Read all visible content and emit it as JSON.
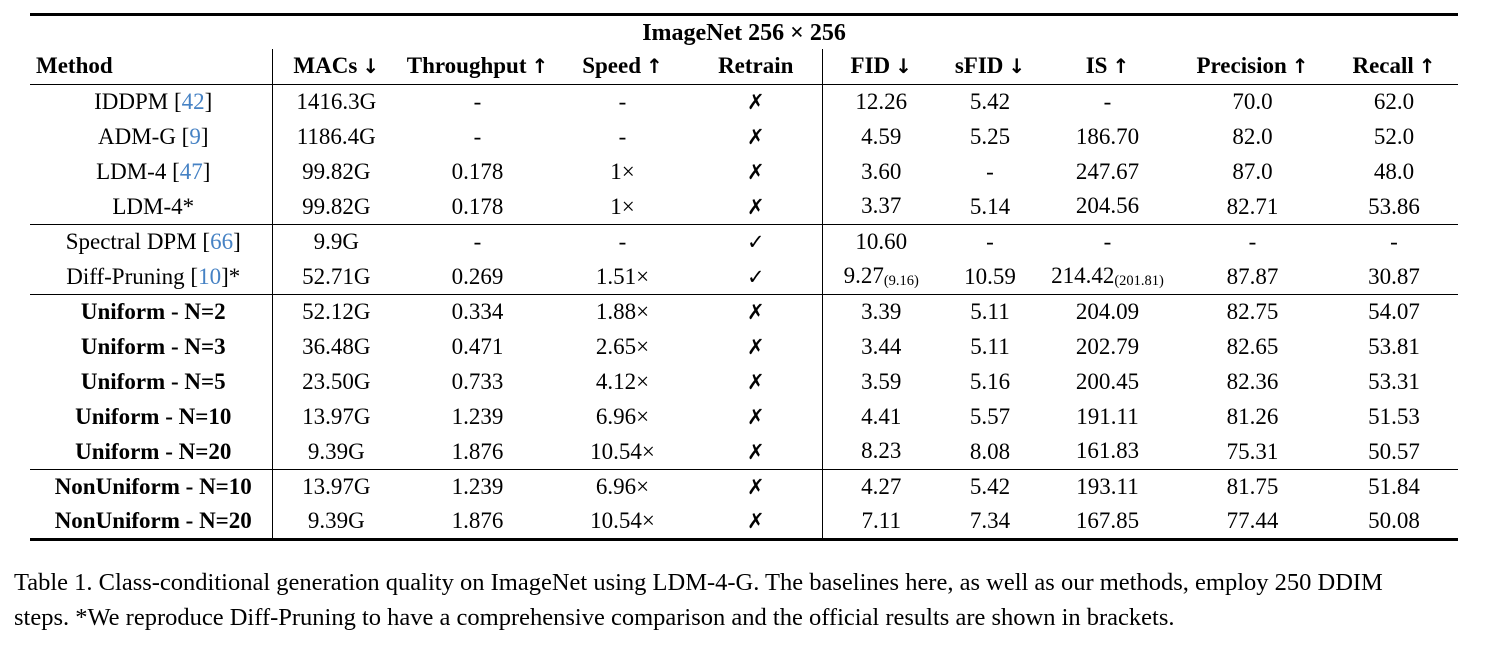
{
  "colors": {
    "citation": "#4682c4",
    "text": "#000000",
    "background": "#ffffff"
  },
  "table": {
    "title": "ImageNet 256 × 256",
    "columns": [
      {
        "label": "Method",
        "arrow": ""
      },
      {
        "label": "MACs",
        "arrow": "↓"
      },
      {
        "label": "Throughput",
        "arrow": "↑"
      },
      {
        "label": "Speed",
        "arrow": "↑"
      },
      {
        "label": "Retrain",
        "arrow": ""
      },
      {
        "label": "FID",
        "arrow": "↓"
      },
      {
        "label": "sFID",
        "arrow": "↓"
      },
      {
        "label": "IS",
        "arrow": "↑"
      },
      {
        "label": "Precision",
        "arrow": "↑"
      },
      {
        "label": "Recall",
        "arrow": "↑"
      }
    ],
    "rows": [
      {
        "method": {
          "pre": "IDDPM [",
          "cite": "42",
          "post": "]"
        },
        "macs": "1416.3G",
        "throughput": "-",
        "speed": "-",
        "retrain": "✗",
        "fid": "12.26",
        "fid_sub": "",
        "sfid": "5.42",
        "is": "-",
        "is_sub": "",
        "precision": "70.0",
        "recall": "62.0"
      },
      {
        "method": {
          "pre": "ADM-G [",
          "cite": "9",
          "post": "]"
        },
        "macs": "1186.4G",
        "throughput": "-",
        "speed": "-",
        "retrain": "✗",
        "fid": "4.59",
        "fid_sub": "",
        "sfid": "5.25",
        "is": "186.70",
        "is_sub": "",
        "precision": "82.0",
        "recall": "52.0"
      },
      {
        "method": {
          "pre": "LDM-4 [",
          "cite": "47",
          "post": "]"
        },
        "macs": "99.82G",
        "throughput": "0.178",
        "speed": "1×",
        "retrain": "✗",
        "fid": "3.60",
        "fid_sub": "",
        "sfid": "-",
        "is": "247.67",
        "is_sub": "",
        "precision": "87.0",
        "recall": "48.0"
      },
      {
        "method": {
          "pre": "LDM-4*",
          "cite": "",
          "post": ""
        },
        "macs": "99.82G",
        "throughput": "0.178",
        "speed": "1×",
        "retrain": "✗",
        "fid": "3.37",
        "fid_sub": "",
        "sfid": "5.14",
        "is": "204.56",
        "is_sub": "",
        "precision": "82.71",
        "recall": "53.86"
      },
      {
        "method": {
          "pre": "Spectral DPM [",
          "cite": "66",
          "post": "]"
        },
        "macs": "9.9G",
        "throughput": "-",
        "speed": "-",
        "retrain": "✓",
        "fid": "10.60",
        "fid_sub": "",
        "sfid": "-",
        "is": "-",
        "is_sub": "",
        "precision": "-",
        "recall": "-"
      },
      {
        "method": {
          "pre": "Diff-Pruning [",
          "cite": "10",
          "post": "]*"
        },
        "macs": "52.71G",
        "throughput": "0.269",
        "speed": "1.51×",
        "retrain": "✓",
        "fid": "9.27",
        "fid_sub": "(9.16)",
        "sfid": "10.59",
        "is": "214.42",
        "is_sub": "(201.81)",
        "precision": "87.87",
        "recall": "30.87"
      },
      {
        "method": {
          "pre": "Uniform - N=2",
          "cite": "",
          "post": ""
        },
        "macs": "52.12G",
        "throughput": "0.334",
        "speed": "1.88×",
        "retrain": "✗",
        "fid": "3.39",
        "fid_sub": "",
        "sfid": "5.11",
        "is": "204.09",
        "is_sub": "",
        "precision": "82.75",
        "recall": "54.07"
      },
      {
        "method": {
          "pre": "Uniform - N=3",
          "cite": "",
          "post": ""
        },
        "macs": "36.48G",
        "throughput": "0.471",
        "speed": "2.65×",
        "retrain": "✗",
        "fid": "3.44",
        "fid_sub": "",
        "sfid": "5.11",
        "is": "202.79",
        "is_sub": "",
        "precision": "82.65",
        "recall": "53.81"
      },
      {
        "method": {
          "pre": "Uniform - N=5",
          "cite": "",
          "post": ""
        },
        "macs": "23.50G",
        "throughput": "0.733",
        "speed": "4.12×",
        "retrain": "✗",
        "fid": "3.59",
        "fid_sub": "",
        "sfid": "5.16",
        "is": "200.45",
        "is_sub": "",
        "precision": "82.36",
        "recall": "53.31"
      },
      {
        "method": {
          "pre": "Uniform - N=10",
          "cite": "",
          "post": ""
        },
        "macs": "13.97G",
        "throughput": "1.239",
        "speed": "6.96×",
        "retrain": "✗",
        "fid": "4.41",
        "fid_sub": "",
        "sfid": "5.57",
        "is": "191.11",
        "is_sub": "",
        "precision": "81.26",
        "recall": "51.53"
      },
      {
        "method": {
          "pre": "Uniform - N=20",
          "cite": "",
          "post": ""
        },
        "macs": "9.39G",
        "throughput": "1.876",
        "speed": "10.54×",
        "retrain": "✗",
        "fid": "8.23",
        "fid_sub": "",
        "sfid": "8.08",
        "is": "161.83",
        "is_sub": "",
        "precision": "75.31",
        "recall": "50.57"
      },
      {
        "method": {
          "pre": "NonUniform - N=10",
          "cite": "",
          "post": ""
        },
        "macs": "13.97G",
        "throughput": "1.239",
        "speed": "6.96×",
        "retrain": "✗",
        "fid": "4.27",
        "fid_sub": "",
        "sfid": "5.42",
        "is": "193.11",
        "is_sub": "",
        "precision": "81.75",
        "recall": "51.84"
      },
      {
        "method": {
          "pre": "NonUniform - N=20",
          "cite": "",
          "post": ""
        },
        "macs": "9.39G",
        "throughput": "1.876",
        "speed": "10.54×",
        "retrain": "✗",
        "fid": "7.11",
        "fid_sub": "",
        "sfid": "7.34",
        "is": "167.85",
        "is_sub": "",
        "precision": "77.44",
        "recall": "50.08"
      }
    ]
  },
  "caption": {
    "line1": "Table 1. Class-conditional generation quality on ImageNet using LDM-4-G. The baselines here, as well as our methods, employ 250 DDIM",
    "line2": "steps. *We reproduce Diff-Pruning to have a comprehensive comparison and the official results are shown in brackets."
  }
}
